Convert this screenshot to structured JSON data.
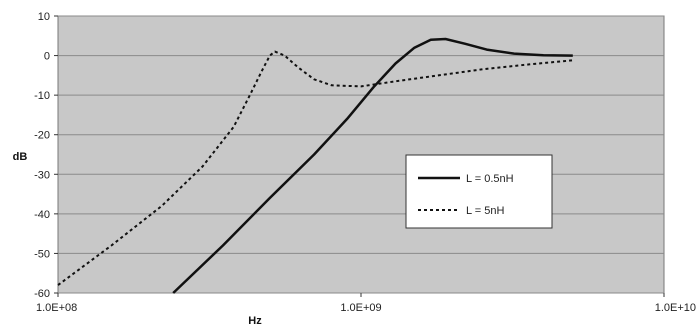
{
  "chart_data": {
    "type": "line",
    "title": "",
    "xlabel": "Hz",
    "ylabel": "dB",
    "x_scale": "log",
    "xlim": [
      100000000,
      10000000000
    ],
    "ylim": [
      -60,
      10
    ],
    "x_tick_labels": [
      {
        "value": 100000000,
        "label": "1.0E+08"
      },
      {
        "value": 1000000000,
        "label": "1.0E+09"
      },
      {
        "value": 10000000000,
        "label": "1.0E+10"
      }
    ],
    "y_ticks": [
      10,
      0,
      -10,
      -20,
      -30,
      -40,
      -50,
      -60
    ],
    "grid": "horizontal",
    "plot_background": "#c8c8c8",
    "line_color": "#111111",
    "legend_position": "right-middle",
    "series": [
      {
        "name": "L = 0.5nH",
        "style": "solid",
        "points": [
          [
            240000000,
            -60
          ],
          [
            350000000,
            -48
          ],
          [
            500000000,
            -36
          ],
          [
            700000000,
            -25
          ],
          [
            900000000,
            -16
          ],
          [
            1100000000,
            -8
          ],
          [
            1300000000,
            -2
          ],
          [
            1500000000,
            2
          ],
          [
            1700000000,
            4
          ],
          [
            1900000000,
            4.2
          ],
          [
            2200000000,
            3
          ],
          [
            2600000000,
            1.5
          ],
          [
            3200000000,
            0.5
          ],
          [
            4000000000,
            0.1
          ],
          [
            5000000000,
            0
          ]
        ]
      },
      {
        "name": "L = 5nH",
        "style": "dashed",
        "points": [
          [
            100000000,
            -58
          ],
          [
            150000000,
            -48
          ],
          [
            220000000,
            -38
          ],
          [
            300000000,
            -28
          ],
          [
            380000000,
            -18
          ],
          [
            430000000,
            -10
          ],
          [
            470000000,
            -4
          ],
          [
            500000000,
            0
          ],
          [
            520000000,
            1
          ],
          [
            560000000,
            0
          ],
          [
            620000000,
            -3
          ],
          [
            700000000,
            -6
          ],
          [
            800000000,
            -7.5
          ],
          [
            1000000000,
            -7.8
          ],
          [
            1300000000,
            -6.5
          ],
          [
            1800000000,
            -5
          ],
          [
            2500000000,
            -3.5
          ],
          [
            3500000000,
            -2.3
          ],
          [
            5000000000,
            -1.2
          ]
        ]
      }
    ]
  }
}
